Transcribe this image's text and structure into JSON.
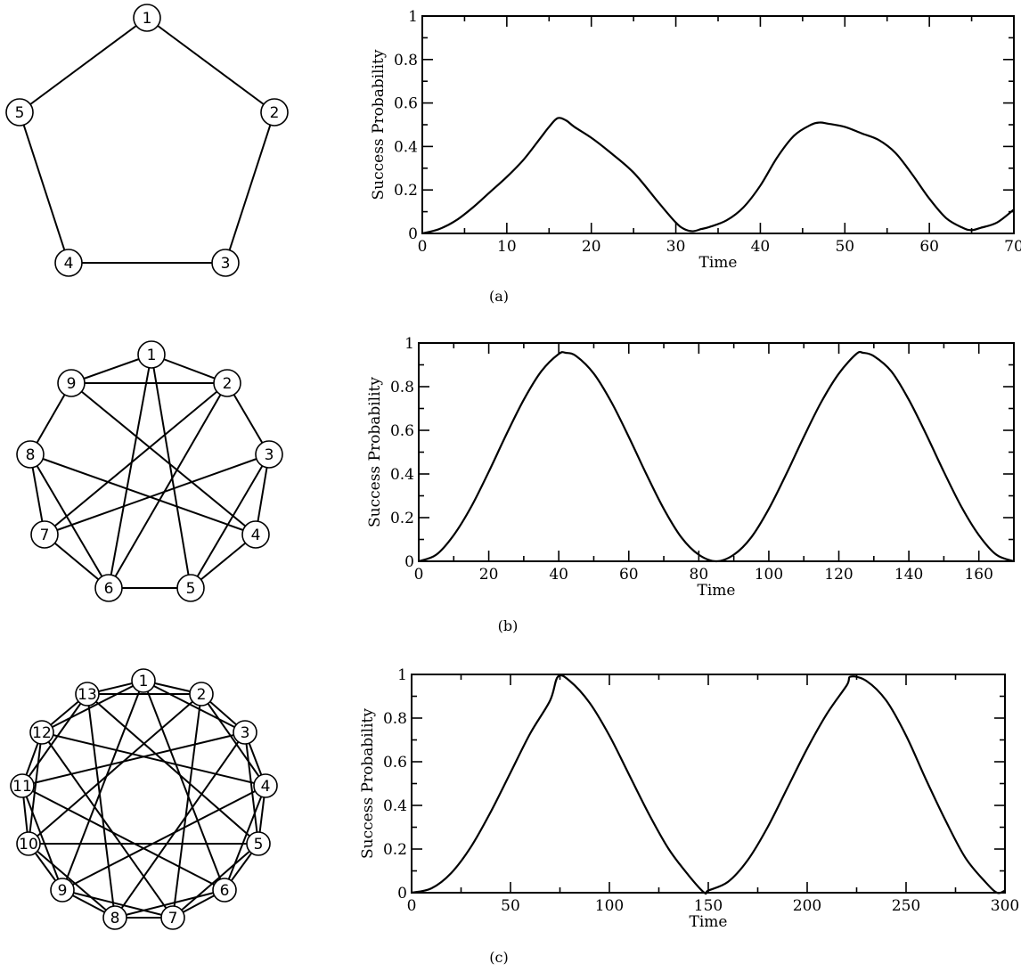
{
  "graphs": [
    {
      "nodes": [
        "1",
        "2",
        "3",
        "4",
        "5"
      ]
    },
    {
      "nodes": [
        "1",
        "2",
        "3",
        "4",
        "5",
        "6",
        "7",
        "8",
        "9"
      ]
    },
    {
      "nodes": [
        "1",
        "2",
        "3",
        "4",
        "5",
        "6",
        "7",
        "8",
        "9",
        "10",
        "11",
        "12",
        "13"
      ]
    }
  ],
  "chart_data": [
    {
      "type": "line",
      "caption": "(a)",
      "xlabel": "Time",
      "ylabel": "Success Probability",
      "xlim": [
        0,
        70
      ],
      "ylim": [
        0,
        1
      ],
      "xticks": [
        "0",
        "10",
        "20",
        "30",
        "40",
        "50",
        "60",
        "70"
      ],
      "yticks": [
        "0",
        "0.2",
        "0.4",
        "0.6",
        "0.8",
        "1"
      ],
      "series": [
        {
          "x": [
            0,
            2,
            4,
            6,
            8,
            10,
            12,
            14,
            15,
            16,
            17,
            18,
            20,
            22,
            25,
            28,
            30,
            31,
            32,
            33,
            34,
            36,
            38,
            40,
            42,
            44,
            46,
            47,
            48,
            50,
            52,
            54,
            56,
            58,
            60,
            62,
            64,
            65,
            66,
            68,
            70
          ],
          "y": [
            0,
            0.02,
            0.06,
            0.12,
            0.19,
            0.26,
            0.34,
            0.44,
            0.49,
            0.53,
            0.52,
            0.49,
            0.44,
            0.38,
            0.28,
            0.14,
            0.05,
            0.02,
            0.01,
            0.02,
            0.03,
            0.06,
            0.12,
            0.22,
            0.35,
            0.45,
            0.5,
            0.51,
            0.505,
            0.49,
            0.46,
            0.43,
            0.37,
            0.27,
            0.16,
            0.07,
            0.025,
            0.015,
            0.025,
            0.05,
            0.11
          ]
        }
      ]
    },
    {
      "type": "line",
      "caption": "(b)",
      "xlabel": "Time",
      "ylabel": "Success Probability",
      "xlim": [
        0,
        170
      ],
      "ylim": [
        0,
        1
      ],
      "xticks": [
        "0",
        "20",
        "40",
        "60",
        "80",
        "100",
        "120",
        "140",
        "160"
      ],
      "yticks": [
        "0",
        "0.2",
        "0.4",
        "0.6",
        "0.8",
        "1"
      ],
      "series": [
        {
          "x": [
            0,
            5,
            10,
            15,
            20,
            25,
            30,
            35,
            40,
            42,
            45,
            50,
            55,
            60,
            65,
            70,
            75,
            80,
            85,
            90,
            95,
            100,
            105,
            110,
            115,
            120,
            125,
            127,
            130,
            135,
            140,
            145,
            150,
            155,
            160,
            165,
            170
          ],
          "y": [
            0,
            0.03,
            0.12,
            0.25,
            0.41,
            0.58,
            0.74,
            0.87,
            0.95,
            0.955,
            0.94,
            0.86,
            0.73,
            0.57,
            0.4,
            0.24,
            0.11,
            0.03,
            0,
            0.03,
            0.11,
            0.24,
            0.4,
            0.57,
            0.73,
            0.86,
            0.95,
            0.955,
            0.94,
            0.87,
            0.74,
            0.58,
            0.41,
            0.25,
            0.12,
            0.03,
            0
          ]
        }
      ]
    },
    {
      "type": "line",
      "caption": "(c)",
      "xlabel": "Time",
      "ylabel": "Success Probability",
      "xlim": [
        0,
        300
      ],
      "ylim": [
        0,
        1
      ],
      "xticks": [
        "0",
        "50",
        "100",
        "150",
        "200",
        "250",
        "300"
      ],
      "yticks": [
        "0",
        "0.2",
        "0.4",
        "0.6",
        "0.8",
        "1"
      ],
      "series": [
        {
          "x": [
            0,
            10,
            20,
            30,
            40,
            50,
            60,
            70,
            74,
            80,
            90,
            100,
            110,
            120,
            130,
            140,
            148,
            150,
            160,
            170,
            180,
            190,
            200,
            210,
            220,
            222,
            230,
            240,
            250,
            260,
            270,
            280,
            290,
            296,
            300
          ],
          "y": [
            0,
            0.02,
            0.09,
            0.21,
            0.37,
            0.55,
            0.73,
            0.88,
            0.99,
            0.97,
            0.87,
            0.72,
            0.54,
            0.36,
            0.2,
            0.08,
            0,
            0.01,
            0.05,
            0.15,
            0.3,
            0.48,
            0.66,
            0.82,
            0.95,
            0.99,
            0.97,
            0.88,
            0.72,
            0.52,
            0.33,
            0.16,
            0.05,
            0,
            0.01
          ]
        }
      ]
    }
  ]
}
